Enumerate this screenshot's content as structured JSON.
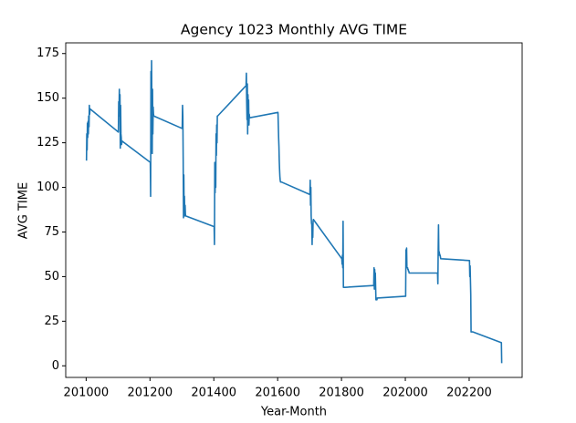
{
  "chart_data": {
    "type": "line",
    "title": "Agency 1023 Monthly AVG TIME",
    "xlabel": "Year-Month",
    "ylabel": "AVG TIME",
    "color": "#1f77b4",
    "x": [
      201001,
      201002,
      201003,
      201004,
      201005,
      201006,
      201007,
      201008,
      201009,
      201010,
      201011,
      201012,
      201101,
      201102,
      201103,
      201104,
      201105,
      201106,
      201107,
      201108,
      201109,
      201110,
      201111,
      201112,
      201201,
      201202,
      201203,
      201204,
      201205,
      201206,
      201207,
      201208,
      201209,
      201210,
      201211,
      201212,
      201301,
      201302,
      201303,
      201304,
      201305,
      201306,
      201307,
      201308,
      201309,
      201310,
      201311,
      201312,
      201401,
      201402,
      201403,
      201404,
      201405,
      201406,
      201407,
      201408,
      201409,
      201410,
      201411,
      201412,
      201501,
      201502,
      201503,
      201504,
      201505,
      201506,
      201507,
      201508,
      201509,
      201510,
      201511,
      201512,
      201601,
      201602,
      201603,
      201604,
      201605,
      201606,
      201607,
      201608,
      201609,
      201610,
      201611,
      201612,
      201701,
      201702,
      201703,
      201704,
      201705,
      201706,
      201707,
      201708,
      201709,
      201710,
      201711,
      201712,
      201801,
      201802,
      201803,
      201804,
      201805,
      201806,
      201807,
      201808,
      201809,
      201810,
      201811,
      201812,
      201901,
      201902,
      201903,
      201904,
      201905,
      201906,
      201907,
      201908,
      201909,
      201910,
      201911,
      201912,
      202001,
      202002,
      202003,
      202004,
      202005,
      202006,
      202007,
      202008,
      202009,
      202010,
      202011,
      202012,
      202101,
      202102,
      202103,
      202104,
      202105,
      202106,
      202107,
      202108,
      202109,
      202110,
      202111,
      202112,
      202201,
      202202,
      202203,
      202204,
      202205,
      202206,
      202207,
      202208,
      202209,
      202210,
      202211,
      202212,
      202301,
      202302
    ],
    "values": [
      115,
      130,
      121,
      136,
      128,
      137,
      130,
      140,
      134,
      146,
      141,
      144,
      131,
      148,
      142,
      155,
      140,
      152,
      122,
      146,
      130,
      128,
      124,
      126,
      114,
      95,
      165,
      120,
      171,
      140,
      119,
      155,
      130,
      145,
      141,
      140,
      133,
      146,
      140,
      116,
      83,
      107,
      86,
      95,
      84,
      90,
      85,
      84,
      78,
      68,
      114,
      97,
      112,
      100,
      130,
      118,
      135,
      125,
      140,
      140,
      157,
      164,
      148,
      138,
      158,
      130,
      152,
      140,
      149,
      135,
      141,
      139,
      142,
      135,
      128,
      123,
      115,
      110,
      106,
      104,
      103,
      103,
      103,
      103,
      96,
      104,
      90,
      100,
      84,
      80,
      79,
      68,
      78,
      72,
      81,
      82,
      60,
      57,
      62,
      55,
      81,
      44,
      44,
      44,
      44,
      44,
      44,
      44,
      45,
      55,
      43,
      54,
      50,
      52,
      44,
      37,
      37,
      37,
      37,
      38,
      39,
      65,
      60,
      66,
      55,
      55,
      55,
      54,
      54,
      53,
      53,
      52,
      52,
      46,
      65,
      79,
      62,
      64,
      63,
      62,
      62,
      61,
      60,
      60,
      59,
      50,
      56,
      48,
      40,
      19,
      19,
      19,
      19,
      19,
      19,
      19,
      13,
      1.5
    ],
    "xlim": [
      200936,
      202366
    ],
    "xticks": [
      201000,
      201200,
      201400,
      201600,
      201800,
      202000,
      202200
    ],
    "ylim": [
      -6.5,
      181
    ],
    "yticks": [
      0,
      25,
      50,
      75,
      100,
      125,
      150,
      175
    ]
  }
}
